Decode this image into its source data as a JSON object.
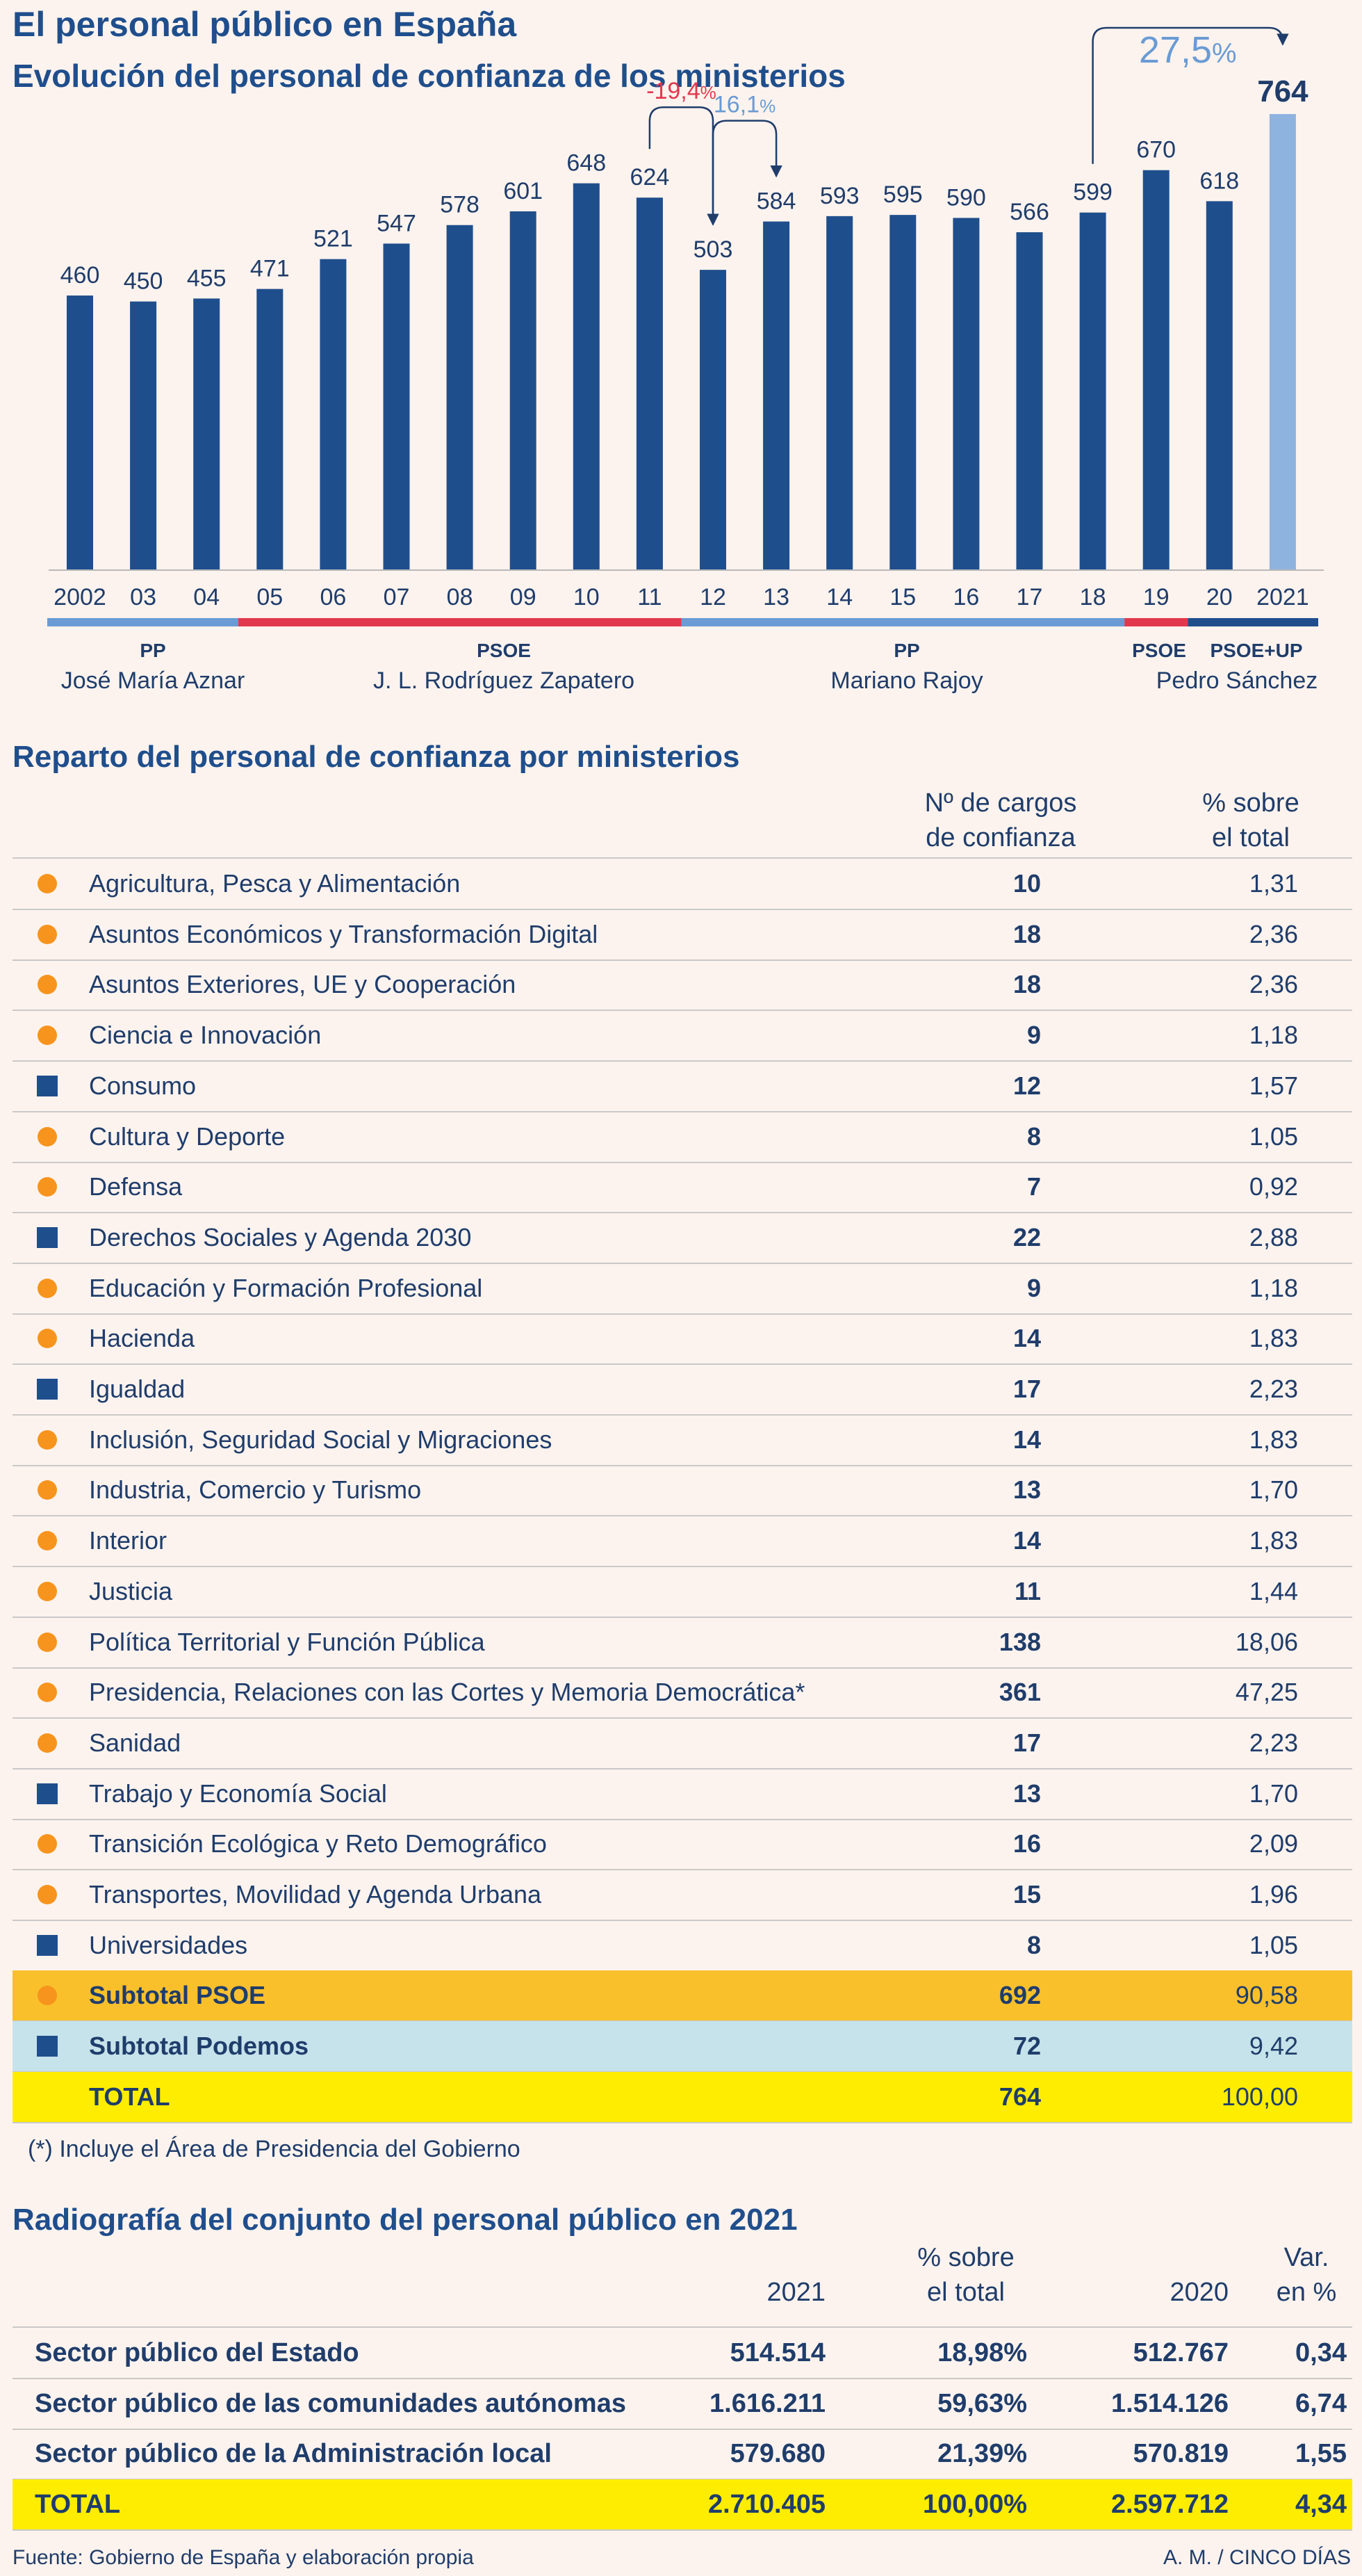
{
  "header": {
    "title": "El personal público en España",
    "subtitle": "Evolución del personal de confianza de los ministerios"
  },
  "colors": {
    "bar": "#1f4e8c",
    "bar_highlight": "#8fb3df",
    "pp": "#6a9bd4",
    "psoe": "#e2384d",
    "psoe_up": "#1f4e8c",
    "negative": "#e2384d",
    "positive": "#6a9bd4",
    "subtotal_psoe_bg": "#f9c02b",
    "subtotal_podemos_bg": "#c6e3eb",
    "total_bg": "#ffed00"
  },
  "chart_data": {
    "type": "bar",
    "title": "Evolución del personal de confianza de los ministerios",
    "categories": [
      "2002",
      "03",
      "04",
      "05",
      "06",
      "07",
      "08",
      "09",
      "10",
      "11",
      "12",
      "13",
      "14",
      "15",
      "16",
      "17",
      "18",
      "19",
      "20",
      "2021"
    ],
    "values": [
      460,
      450,
      455,
      471,
      521,
      547,
      578,
      601,
      648,
      624,
      503,
      584,
      593,
      595,
      590,
      566,
      599,
      670,
      618,
      764
    ],
    "highlight_index": 19,
    "annotations": [
      {
        "text": "-19,4",
        "suffix": "%",
        "from": "11",
        "to": "12",
        "color": "negative"
      },
      {
        "text": "16,1",
        "suffix": "%",
        "from": "12",
        "to": "13",
        "color": "positive"
      },
      {
        "text": "27,5",
        "suffix": "%",
        "from": "18",
        "to": "2021",
        "color": "positive"
      }
    ],
    "periods": [
      {
        "party": "PP",
        "leader": "José María Aznar",
        "from": "2002",
        "to": "04",
        "color": "pp"
      },
      {
        "party": "PSOE",
        "leader": "J. L. Rodríguez Zapatero",
        "from": "05",
        "to": "11",
        "color": "psoe"
      },
      {
        "party": "PP",
        "leader": "Mariano Rajoy",
        "from": "12",
        "to": "18",
        "color": "pp"
      },
      {
        "party": "PSOE",
        "leader": "",
        "from": "19",
        "to": "19",
        "color": "psoe"
      },
      {
        "party": "PSOE+UP",
        "leader": "",
        "from": "20",
        "to": "2021",
        "color": "psoe_up"
      }
    ],
    "period_leader_extra": "Pedro Sánchez"
  },
  "ministries": {
    "title": "Reparto del personal de confianza por ministerios",
    "col_count_line1": "Nº de cargos",
    "col_count_line2": "de confianza",
    "col_pct_line1": "% sobre",
    "col_pct_line2": "el total",
    "rows": [
      {
        "name": "Agricultura, Pesca y Alimentación",
        "count": "10",
        "pct": "1,31",
        "marker": "dot"
      },
      {
        "name": "Asuntos Económicos y Transformación Digital",
        "count": "18",
        "pct": "2,36",
        "marker": "dot"
      },
      {
        "name": "Asuntos Exteriores, UE y Cooperación",
        "count": "18",
        "pct": "2,36",
        "marker": "dot"
      },
      {
        "name": "Ciencia e Innovación",
        "count": "9",
        "pct": "1,18",
        "marker": "dot"
      },
      {
        "name": "Consumo",
        "count": "12",
        "pct": "1,57",
        "marker": "sq"
      },
      {
        "name": "Cultura y Deporte",
        "count": "8",
        "pct": "1,05",
        "marker": "dot"
      },
      {
        "name": "Defensa",
        "count": "7",
        "pct": "0,92",
        "marker": "dot"
      },
      {
        "name": "Derechos Sociales y Agenda 2030",
        "count": "22",
        "pct": "2,88",
        "marker": "sq"
      },
      {
        "name": "Educación y Formación Profesional",
        "count": "9",
        "pct": "1,18",
        "marker": "dot"
      },
      {
        "name": "Hacienda",
        "count": "14",
        "pct": "1,83",
        "marker": "dot"
      },
      {
        "name": "Igualdad",
        "count": "17",
        "pct": "2,23",
        "marker": "sq"
      },
      {
        "name": "Inclusión, Seguridad Social y Migraciones",
        "count": "14",
        "pct": "1,83",
        "marker": "dot"
      },
      {
        "name": "Industria, Comercio y Turismo",
        "count": "13",
        "pct": "1,70",
        "marker": "dot"
      },
      {
        "name": "Interior",
        "count": "14",
        "pct": "1,83",
        "marker": "dot"
      },
      {
        "name": "Justicia",
        "count": "11",
        "pct": "1,44",
        "marker": "dot"
      },
      {
        "name": "Política Territorial y Función Pública",
        "count": "138",
        "pct": "18,06",
        "marker": "dot"
      },
      {
        "name": "Presidencia, Relaciones con las Cortes y Memoria Democrática*",
        "count": "361",
        "pct": "47,25",
        "marker": "dot"
      },
      {
        "name": "Sanidad",
        "count": "17",
        "pct": "2,23",
        "marker": "dot"
      },
      {
        "name": "Trabajo y Economía Social",
        "count": "13",
        "pct": "1,70",
        "marker": "sq"
      },
      {
        "name": "Transición Ecológica y Reto Demográfico",
        "count": "16",
        "pct": "2,09",
        "marker": "dot"
      },
      {
        "name": "Transportes, Movilidad y Agenda Urbana",
        "count": "15",
        "pct": "1,96",
        "marker": "dot"
      },
      {
        "name": "Universidades",
        "count": "8",
        "pct": "1,05",
        "marker": "sq"
      },
      {
        "name": "Subtotal PSOE",
        "count": "692",
        "pct": "90,58",
        "marker": "dot",
        "style": "hl-o"
      },
      {
        "name": "Subtotal Podemos",
        "count": "72",
        "pct": "9,42",
        "marker": "sq",
        "style": "hl-b"
      },
      {
        "name": "TOTAL",
        "count": "764",
        "pct": "100,00",
        "marker": "none",
        "style": "hl-y"
      }
    ],
    "note": "(*) Incluye el Área de Presidencia del Gobierno"
  },
  "sectors": {
    "title": "Radiografía del conjunto del personal público en 2021",
    "col_2021": "2021",
    "col_pct_line1": "% sobre",
    "col_pct_line2": "el total",
    "col_2020": "2020",
    "col_var_line1": "Var.",
    "col_var_line2": "en %",
    "rows": [
      {
        "name": "Sector público del Estado",
        "v2021": "514.514",
        "pct": "18,98%",
        "v2020": "512.767",
        "var": "0,34"
      },
      {
        "name": "Sector público de las comunidades autónomas",
        "v2021": "1.616.211",
        "pct": "59,63%",
        "v2020": "1.514.126",
        "var": "6,74"
      },
      {
        "name": "Sector público de la Administración local",
        "v2021": "579.680",
        "pct": "21,39%",
        "v2020": "570.819",
        "var": "1,55"
      },
      {
        "name": "TOTAL",
        "v2021": "2.710.405",
        "pct": "100,00%",
        "v2020": "2.597.712",
        "var": "4,34",
        "style": "hl-y"
      }
    ]
  },
  "footer": {
    "source": "Fuente: Gobierno de España y elaboración propia",
    "credit": "A. M. / CINCO DÍAS"
  }
}
